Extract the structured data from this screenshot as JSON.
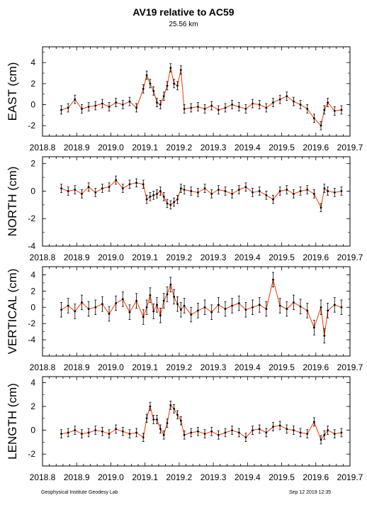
{
  "page": {
    "title": "AV19 relative to AC59",
    "subtitle": "25.56 km",
    "footer_left": "Geophysical Institute Geodesy Lab",
    "footer_right": "Sep 12 2019 12:35"
  },
  "colors": {
    "series": "#000000",
    "connector": "#ff3300"
  },
  "chart_data": [
    {
      "type": "scatter",
      "ylabel": "EAST (cm)",
      "xlim": [
        2018.8,
        2019.7
      ],
      "ylim": [
        -3,
        5.5
      ],
      "xticks": [
        "2018.8",
        "2018.9",
        "2019.0",
        "2019.1",
        "2019.2",
        "2019.3",
        "2019.4",
        "2019.5",
        "2019.6",
        "2019.7"
      ],
      "yticks": [
        -2,
        0,
        2,
        4
      ],
      "error": 0.4,
      "x": [
        2018.855,
        2018.875,
        2018.895,
        2018.915,
        2018.935,
        2018.955,
        2018.975,
        2018.995,
        2019.015,
        2019.035,
        2019.055,
        2019.075,
        2019.095,
        2019.105,
        2019.115,
        2019.125,
        2019.135,
        2019.145,
        2019.155,
        2019.165,
        2019.175,
        2019.185,
        2019.195,
        2019.205,
        2019.215,
        2019.235,
        2019.255,
        2019.275,
        2019.295,
        2019.315,
        2019.335,
        2019.355,
        2019.375,
        2019.395,
        2019.415,
        2019.435,
        2019.455,
        2019.475,
        2019.495,
        2019.515,
        2019.535,
        2019.555,
        2019.575,
        2019.595,
        2019.615,
        2019.625,
        2019.635,
        2019.655,
        2019.675
      ],
      "y": [
        -0.5,
        -0.3,
        0.5,
        -0.4,
        -0.2,
        -0.1,
        0.1,
        -0.2,
        0.2,
        0.0,
        0.3,
        -0.3,
        1.5,
        2.8,
        2.0,
        1.3,
        0.2,
        0.0,
        0.8,
        1.8,
        3.5,
        2.0,
        1.8,
        3.3,
        -0.4,
        -0.3,
        -0.2,
        -0.4,
        -0.1,
        -0.5,
        -0.3,
        0.0,
        -0.2,
        -0.4,
        0.1,
        0.0,
        -0.3,
        0.2,
        0.5,
        0.8,
        0.3,
        0.0,
        -0.4,
        -1.3,
        -2.0,
        -0.5,
        0.2,
        -0.6,
        -0.5
      ]
    },
    {
      "type": "scatter",
      "ylabel": "NORTH (cm)",
      "xlim": [
        2018.8,
        2019.7
      ],
      "ylim": [
        -4,
        2.5
      ],
      "xticks": [
        "2018.8",
        "2018.9",
        "2019.0",
        "2019.1",
        "2019.2",
        "2019.3",
        "2019.4",
        "2019.5",
        "2019.6",
        "2019.7"
      ],
      "yticks": [
        -4,
        -2,
        0,
        2
      ],
      "error": 0.3,
      "x": [
        2018.855,
        2018.875,
        2018.895,
        2018.915,
        2018.935,
        2018.955,
        2018.975,
        2018.995,
        2019.015,
        2019.035,
        2019.055,
        2019.075,
        2019.095,
        2019.105,
        2019.115,
        2019.125,
        2019.135,
        2019.145,
        2019.155,
        2019.165,
        2019.175,
        2019.185,
        2019.195,
        2019.205,
        2019.215,
        2019.235,
        2019.255,
        2019.275,
        2019.295,
        2019.315,
        2019.335,
        2019.355,
        2019.375,
        2019.395,
        2019.415,
        2019.435,
        2019.455,
        2019.475,
        2019.495,
        2019.515,
        2019.535,
        2019.555,
        2019.575,
        2019.595,
        2019.615,
        2019.625,
        2019.635,
        2019.655,
        2019.675
      ],
      "y": [
        0.2,
        0.0,
        0.1,
        -0.2,
        0.3,
        -0.1,
        0.2,
        0.3,
        0.8,
        0.2,
        0.5,
        0.6,
        0.5,
        -0.6,
        -0.4,
        -0.3,
        -0.2,
        0.0,
        -0.4,
        -0.9,
        -1.0,
        -0.8,
        -0.6,
        0.2,
        0.1,
        0.0,
        -0.1,
        0.2,
        -0.2,
        0.1,
        0.0,
        -0.2,
        0.1,
        0.3,
        -0.1,
        0.0,
        -0.3,
        -0.6,
        0.0,
        0.1,
        -0.2,
        0.0,
        0.1,
        -0.2,
        -1.2,
        0.2,
        0.0,
        -0.1,
        0.0
      ]
    },
    {
      "type": "scatter",
      "ylabel": "VERTICAL (cm)",
      "xlim": [
        2018.8,
        2019.7
      ],
      "ylim": [
        -6,
        5
      ],
      "xticks": [
        "2018.8",
        "2018.9",
        "2019.0",
        "2019.1",
        "2019.2",
        "2019.3",
        "2019.4",
        "2019.5",
        "2019.6",
        "2019.7"
      ],
      "yticks": [
        -4,
        -2,
        0,
        2,
        4
      ],
      "error": 0.9,
      "x": [
        2018.855,
        2018.875,
        2018.895,
        2018.915,
        2018.935,
        2018.955,
        2018.975,
        2018.995,
        2019.015,
        2019.035,
        2019.055,
        2019.075,
        2019.095,
        2019.105,
        2019.115,
        2019.125,
        2019.135,
        2019.145,
        2019.155,
        2019.165,
        2019.175,
        2019.185,
        2019.195,
        2019.205,
        2019.215,
        2019.235,
        2019.255,
        2019.275,
        2019.295,
        2019.315,
        2019.335,
        2019.355,
        2019.375,
        2019.395,
        2019.415,
        2019.435,
        2019.455,
        2019.475,
        2019.495,
        2019.515,
        2019.535,
        2019.555,
        2019.575,
        2019.595,
        2019.615,
        2019.625,
        2019.635,
        2019.655,
        2019.675
      ],
      "y": [
        -0.3,
        0.2,
        -0.5,
        0.6,
        -0.2,
        0.0,
        0.4,
        -0.8,
        0.5,
        1.0,
        -0.6,
        0.8,
        -1.2,
        0.0,
        1.5,
        -0.5,
        0.3,
        -1.0,
        0.8,
        1.6,
        2.8,
        1.3,
        0.4,
        -0.3,
        0.2,
        -0.9,
        -0.4,
        0.0,
        -0.6,
        0.3,
        -0.2,
        0.2,
        0.5,
        -0.3,
        0.0,
        0.3,
        -0.2,
        3.4,
        0.2,
        -0.2,
        0.6,
        0.1,
        -0.4,
        -2.5,
        0.0,
        -3.5,
        -0.4,
        0.3,
        0.0
      ]
    },
    {
      "type": "scatter",
      "ylabel": "LENGTH (cm)",
      "xlim": [
        2018.8,
        2019.7
      ],
      "ylim": [
        -3,
        4.5
      ],
      "xticks": [
        "2018.8",
        "2018.9",
        "2019.0",
        "2019.1",
        "2019.2",
        "2019.3",
        "2019.4",
        "2019.5",
        "2019.6",
        "2019.7"
      ],
      "yticks": [
        -2,
        0,
        2,
        4
      ],
      "error": 0.35,
      "x": [
        2018.855,
        2018.875,
        2018.895,
        2018.915,
        2018.935,
        2018.955,
        2018.975,
        2018.995,
        2019.015,
        2019.035,
        2019.055,
        2019.075,
        2019.095,
        2019.105,
        2019.115,
        2019.125,
        2019.135,
        2019.145,
        2019.155,
        2019.165,
        2019.175,
        2019.185,
        2019.195,
        2019.205,
        2019.215,
        2019.235,
        2019.255,
        2019.275,
        2019.295,
        2019.315,
        2019.335,
        2019.355,
        2019.375,
        2019.395,
        2019.415,
        2019.435,
        2019.455,
        2019.475,
        2019.495,
        2019.515,
        2019.535,
        2019.555,
        2019.575,
        2019.595,
        2019.615,
        2019.625,
        2019.635,
        2019.655,
        2019.675
      ],
      "y": [
        -0.3,
        -0.2,
        0.0,
        -0.3,
        -0.2,
        0.0,
        -0.1,
        -0.3,
        0.1,
        -0.1,
        -0.3,
        -0.2,
        -0.6,
        1.0,
        2.0,
        0.9,
        0.9,
        0.1,
        -0.4,
        0.6,
        2.1,
        1.8,
        1.3,
        0.8,
        -0.4,
        -0.2,
        -0.1,
        -0.3,
        -0.1,
        -0.4,
        -0.2,
        0.0,
        -0.2,
        -0.6,
        0.0,
        0.1,
        -0.2,
        0.3,
        0.4,
        0.1,
        0.0,
        -0.2,
        -0.3,
        0.7,
        -0.8,
        -0.4,
        0.0,
        -0.3,
        -0.2
      ]
    }
  ]
}
